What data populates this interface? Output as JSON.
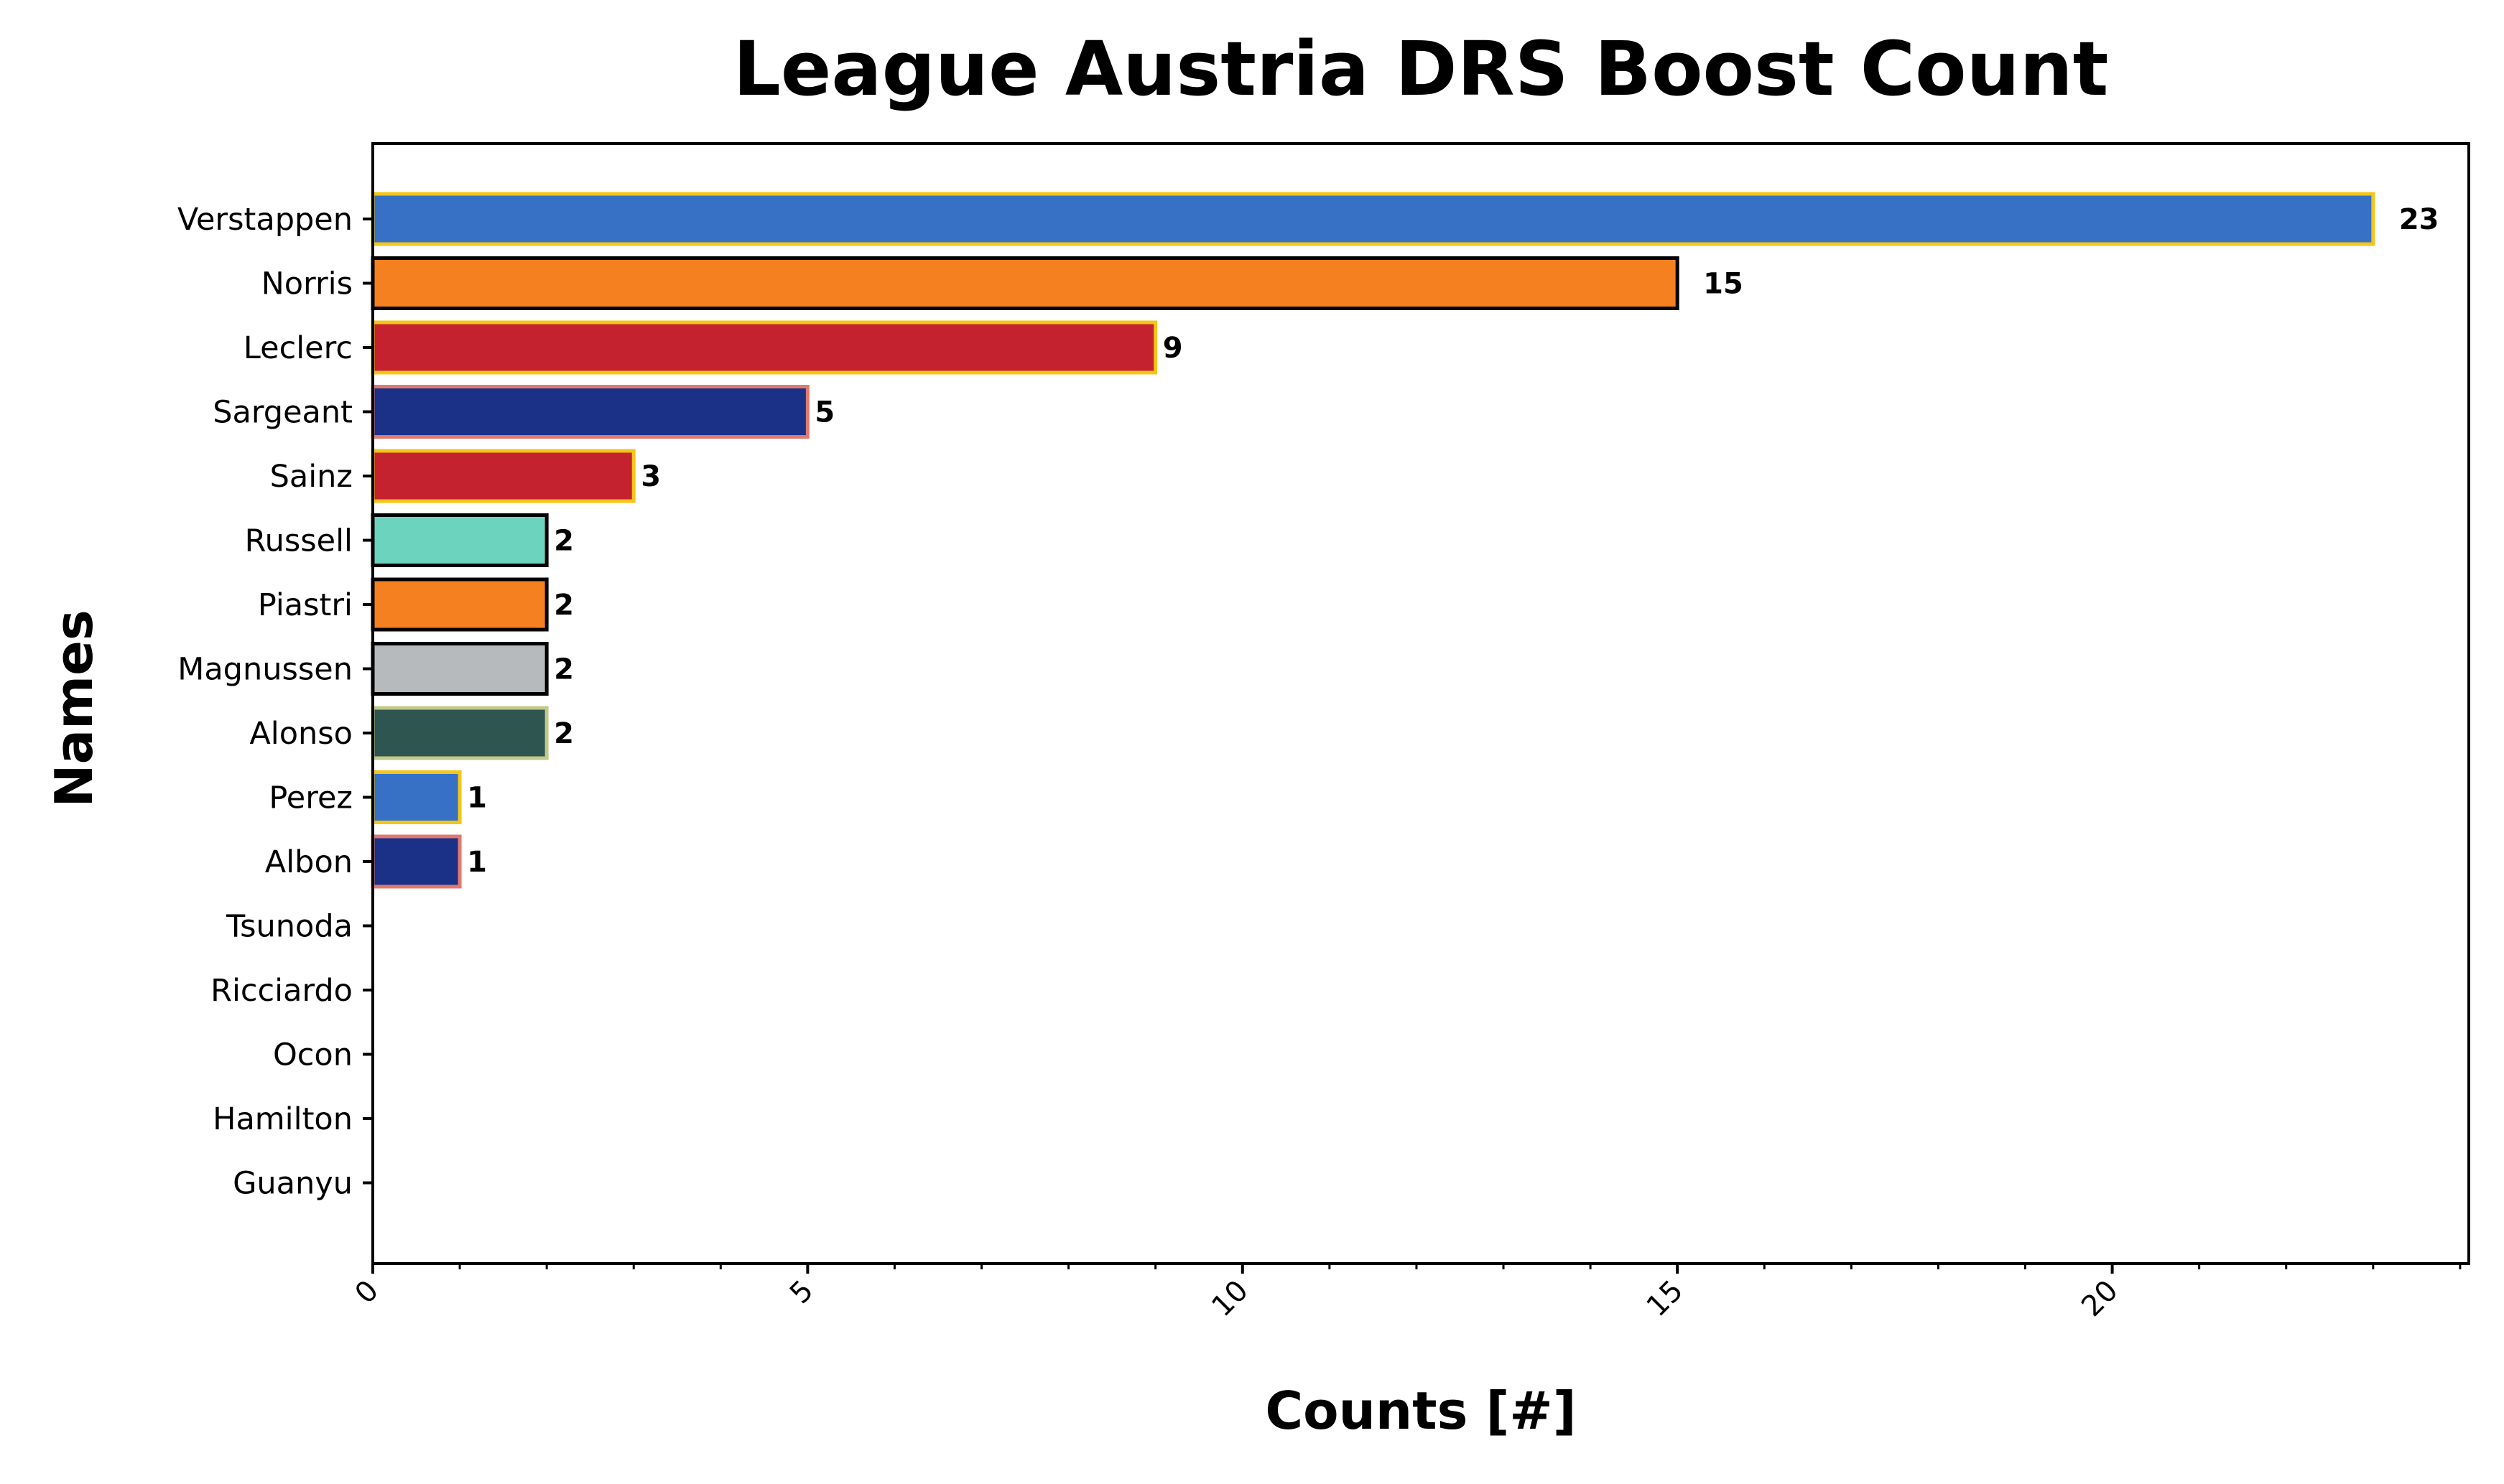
{
  "chart_data": {
    "type": "bar",
    "orientation": "horizontal",
    "title": "League Austria DRS Boost Count",
    "xlabel": "Counts [#]",
    "ylabel": "Names",
    "xlim": [
      0,
      24.1
    ],
    "xticks": [
      0,
      5,
      10,
      15,
      20
    ],
    "x_minor_step": 1,
    "grid": false,
    "legend": "none",
    "categories": [
      "Verstappen",
      "Norris",
      "Leclerc",
      "Sargeant",
      "Sainz",
      "Russell",
      "Piastri",
      "Magnussen",
      "Alonso",
      "Perez",
      "Albon",
      "Tsunoda",
      "Ricciardo",
      "Ocon",
      "Hamilton",
      "Guanyu"
    ],
    "values": [
      23,
      15,
      9,
      5,
      3,
      2,
      2,
      2,
      2,
      1,
      1,
      0,
      0,
      0,
      0,
      0
    ],
    "data_labels": [
      "23",
      "15",
      "9",
      "5",
      "3",
      "2",
      "2",
      "2",
      "2",
      "1",
      "1",
      "",
      "",
      "",
      "",
      ""
    ],
    "fill_colors": [
      "#3671C6",
      "#F58020",
      "#C3222E",
      "#1B3187",
      "#C3222E",
      "#6CD3BF",
      "#F58020",
      "#B6BABD",
      "#2F5550",
      "#3671C6",
      "#1B3187",
      "#6692FF",
      "#6692FF",
      "#2293D1",
      "#6CD3BF",
      "#52E252"
    ],
    "edge_colors": [
      "#F5C518",
      "#000000",
      "#F5C518",
      "#E07A6F",
      "#F5C518",
      "#000000",
      "#000000",
      "#000000",
      "#C3C98A",
      "#F5C518",
      "#E07A6F",
      "#000000",
      "#000000",
      "#000000",
      "#000000",
      "#000000"
    ]
  }
}
